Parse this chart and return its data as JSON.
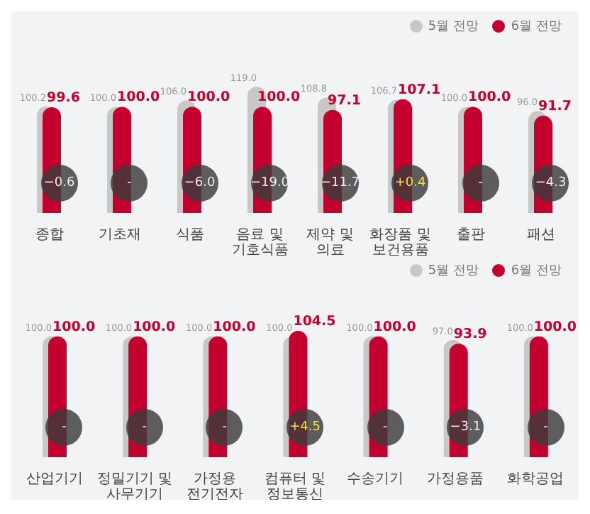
{
  "chart_data": [
    {
      "type": "bar",
      "categories": [
        "종합",
        "기초재",
        "식품",
        "음료 및\n기호식품",
        "제약 및\n의료",
        "화장품 및\n보건용품",
        "출판",
        "패션"
      ],
      "series": [
        {
          "name": "5월 전망",
          "color": "#c8c8c8",
          "values": [
            100.2,
            100,
            106,
            119,
            108.8,
            106.7,
            100,
            96
          ],
          "value_labels": [
            "100.2",
            "100.0",
            "106.0",
            "119.0",
            "108.8",
            "106.7",
            "100.0",
            "96.0"
          ]
        },
        {
          "name": "6월 전망",
          "color": "#c4002f",
          "values": [
            99.6,
            100,
            100,
            100,
            97.1,
            107.1,
            100,
            91.7
          ],
          "value_labels": [
            "99.6",
            "100.0",
            "100.0",
            "100.0",
            "97.1",
            "107.1",
            "100.0",
            "91.7"
          ]
        }
      ],
      "legend": "top right",
      "annotations": [
        {
          "text": "−0.6",
          "x": "종합"
        },
        {
          "text": "-",
          "x": "기초재"
        },
        {
          "text": "−6.0",
          "x": "식품"
        },
        {
          "text": "−19.0",
          "x": "음료 및\n기호식품"
        },
        {
          "text": "−11.7",
          "x": "제약 및\n의료"
        },
        {
          "text": "+0.4",
          "x": "화장품 및\n보건용품"
        },
        {
          "text": "-",
          "x": "출판"
        },
        {
          "text": "−4.3",
          "x": "패션"
        }
      ]
    },
    {
      "type": "bar",
      "categories": [
        "산업기기",
        "정밀기기 및\n사무기기",
        "가정용\n전기전자",
        "컴퓨터 및\n정보통신",
        "수송기기",
        "가정용품",
        "화학공업"
      ],
      "series": [
        {
          "name": "5월 전망",
          "color": "#c8c8c8",
          "values": [
            100,
            100,
            100,
            100,
            100,
            97,
            100
          ],
          "value_labels": [
            "100.0",
            "100.0",
            "100.0",
            "100.0",
            "100.0",
            "97.0",
            "100.0"
          ]
        },
        {
          "name": "6월 전망",
          "color": "#c4002f",
          "values": [
            100,
            100,
            100,
            104.5,
            100,
            93.9,
            100
          ],
          "value_labels": [
            "100.0",
            "100.0",
            "100.0",
            "104.5",
            "100.0",
            "93.9",
            "100.0"
          ]
        }
      ],
      "legend": "top right",
      "annotations": [
        {
          "text": "-",
          "x": "산업기기"
        },
        {
          "text": "-",
          "x": "정밀기기 및\n사무기기"
        },
        {
          "text": "-",
          "x": "가정용\n전기전자"
        },
        {
          "text": "+4.5",
          "x": "컴퓨터 및\n정보통신"
        },
        {
          "text": "-",
          "x": "수송기기"
        },
        {
          "text": "−3.1",
          "x": "가정용품"
        },
        {
          "text": "-",
          "x": "화학공업"
        }
      ]
    }
  ]
}
